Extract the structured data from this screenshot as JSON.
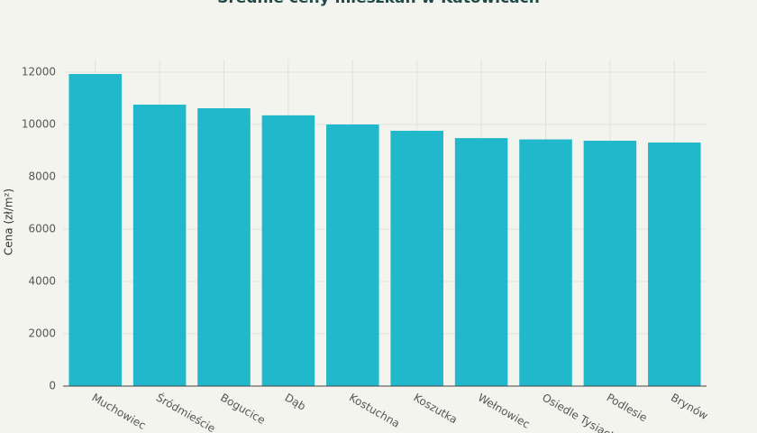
{
  "chart_data": {
    "type": "bar",
    "title": "Średnie ceny mieszkań w Katowicach",
    "y_label": "Cena (zł/m²)",
    "categories": [
      "Muchowiec",
      "Śródmieście",
      "Bogucice",
      "Dąb",
      "Kostuchna",
      "Koszutka",
      "Wełnowiec",
      "Osiedle Tysiąclecia",
      "Podlesie",
      "Brynów"
    ],
    "values": [
      11930,
      10760,
      10620,
      10350,
      10000,
      9760,
      9480,
      9430,
      9380,
      9310
    ],
    "color": "#21b8cb",
    "ylim": [
      0,
      12000
    ],
    "yticks": [
      0,
      2000,
      4000,
      6000,
      8000,
      10000,
      12000
    ],
    "grid": true
  }
}
